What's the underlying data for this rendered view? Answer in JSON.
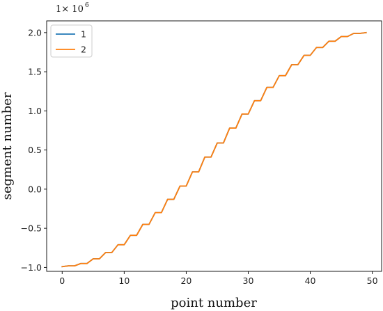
{
  "chart_data": {
    "type": "line",
    "xlabel": "point number",
    "ylabel": "segment number",
    "offset_text": {
      "base": "1× 10",
      "exponent": "6"
    },
    "xlim": [
      -2.5,
      51.5
    ],
    "ylim": [
      -1.05,
      2.15
    ],
    "xticks": [
      0,
      10,
      20,
      30,
      40,
      50
    ],
    "yticks": [
      -1.0,
      -0.5,
      0.0,
      0.5,
      1.0,
      1.5,
      2.0
    ],
    "ytick_labels": [
      "−1.0",
      "−0.5",
      "0.0",
      "0.5",
      "1.0",
      "1.5",
      "2.0"
    ],
    "legend_position": "upper-left",
    "series": [
      {
        "name": "1",
        "color": "#1f77b4",
        "x": [
          0,
          1,
          2,
          3,
          4,
          5,
          6,
          7,
          8,
          9,
          10,
          11,
          12,
          13,
          14,
          15,
          16,
          17,
          18,
          19,
          20,
          21,
          22,
          23,
          24,
          25,
          26,
          27,
          28,
          29,
          30,
          31,
          32,
          33,
          34,
          35,
          36,
          37,
          38,
          39,
          40,
          41,
          42,
          43,
          44,
          45,
          46,
          47,
          48,
          49
        ],
        "y": [
          -0.99,
          -0.98,
          -0.98,
          -0.95,
          -0.95,
          -0.89,
          -0.89,
          -0.81,
          -0.81,
          -0.71,
          -0.71,
          -0.59,
          -0.59,
          -0.45,
          -0.45,
          -0.3,
          -0.3,
          -0.13,
          -0.13,
          0.04,
          0.04,
          0.22,
          0.22,
          0.41,
          0.41,
          0.59,
          0.59,
          0.78,
          0.78,
          0.96,
          0.96,
          1.13,
          1.13,
          1.3,
          1.3,
          1.45,
          1.45,
          1.59,
          1.59,
          1.71,
          1.71,
          1.81,
          1.81,
          1.89,
          1.89,
          1.95,
          1.95,
          1.99,
          1.99,
          2.0
        ]
      },
      {
        "name": "2",
        "color": "#ff7f0e",
        "x": [
          0,
          1,
          2,
          3,
          4,
          5,
          6,
          7,
          8,
          9,
          10,
          11,
          12,
          13,
          14,
          15,
          16,
          17,
          18,
          19,
          20,
          21,
          22,
          23,
          24,
          25,
          26,
          27,
          28,
          29,
          30,
          31,
          32,
          33,
          34,
          35,
          36,
          37,
          38,
          39,
          40,
          41,
          42,
          43,
          44,
          45,
          46,
          47,
          48,
          49
        ],
        "y": [
          -0.99,
          -0.98,
          -0.98,
          -0.95,
          -0.95,
          -0.89,
          -0.89,
          -0.81,
          -0.81,
          -0.71,
          -0.71,
          -0.59,
          -0.59,
          -0.45,
          -0.45,
          -0.3,
          -0.3,
          -0.13,
          -0.13,
          0.04,
          0.04,
          0.22,
          0.22,
          0.41,
          0.41,
          0.59,
          0.59,
          0.78,
          0.78,
          0.96,
          0.96,
          1.13,
          1.13,
          1.3,
          1.3,
          1.45,
          1.45,
          1.59,
          1.59,
          1.71,
          1.71,
          1.81,
          1.81,
          1.89,
          1.89,
          1.95,
          1.95,
          1.99,
          1.99,
          2.0
        ]
      }
    ]
  }
}
